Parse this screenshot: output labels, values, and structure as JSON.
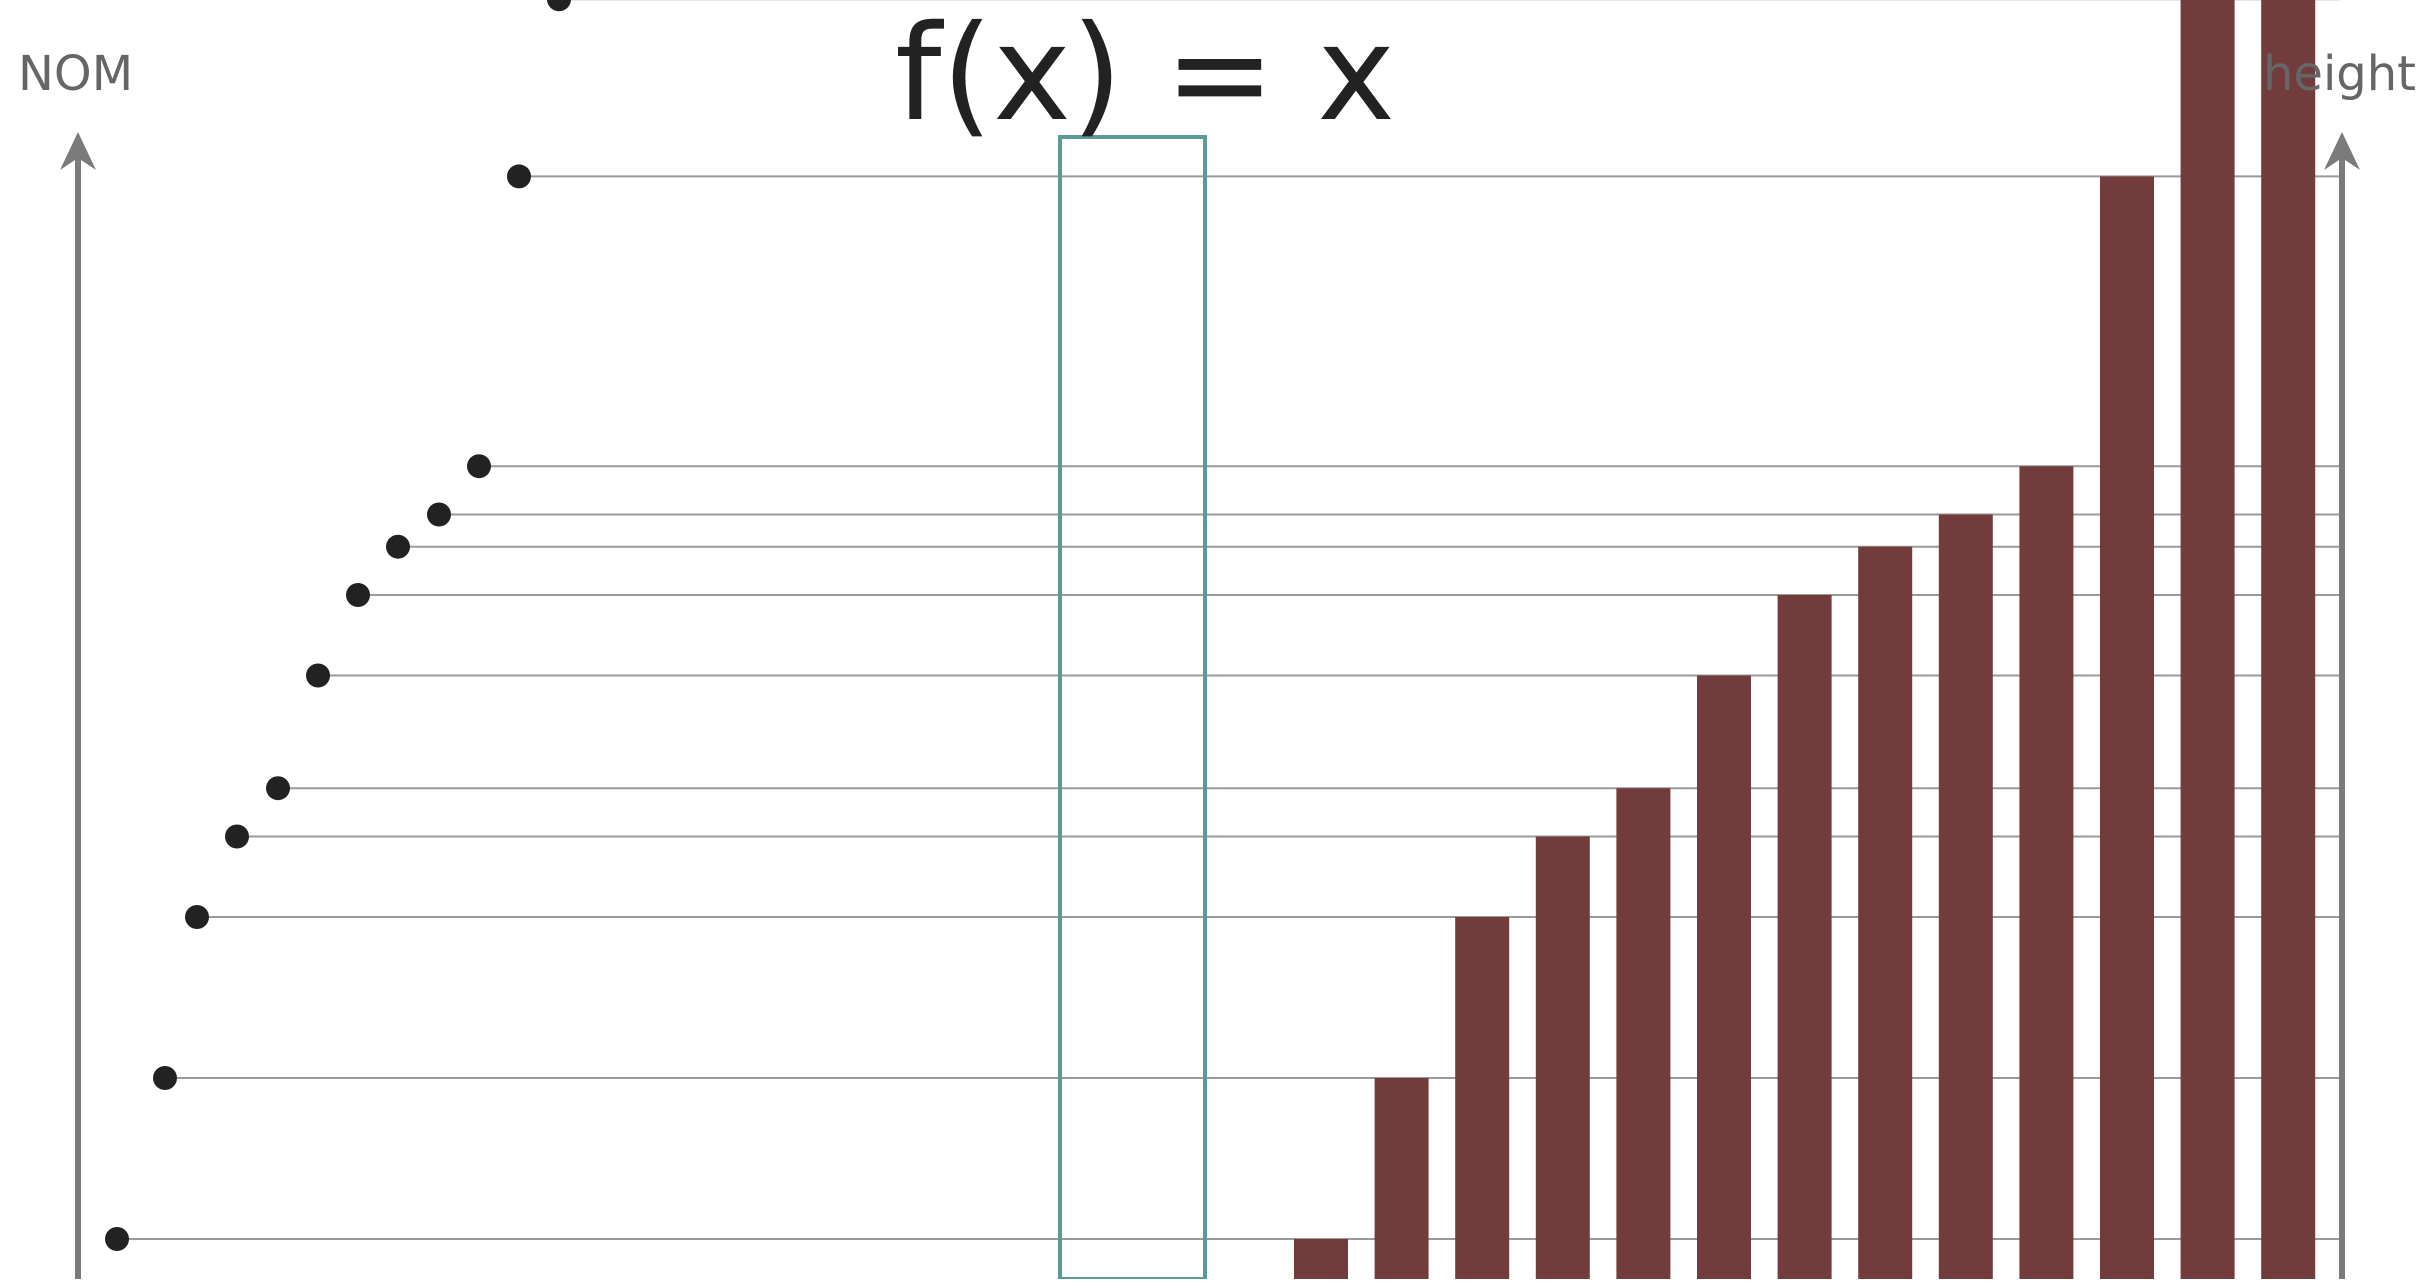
{
  "title": "f(x) = x",
  "left_axis_label": "NOM",
  "right_axis_label": "height",
  "colors": {
    "axis": "#7a7a7a",
    "guide_line": "#9a9a9a",
    "dot": "#222222",
    "bar": "#733c3c",
    "box": "#5a9a9a",
    "text": "#222222"
  },
  "chart_data": {
    "type": "bar",
    "points": [
      {
        "x": 1,
        "y": 1
      },
      {
        "x": 2,
        "y": 2
      },
      {
        "x": 3,
        "y": 3
      },
      {
        "x": 4,
        "y": 3.5
      },
      {
        "x": 5,
        "y": 3.8
      },
      {
        "x": 6,
        "y": 4.5
      },
      {
        "x": 7,
        "y": 5
      },
      {
        "x": 8,
        "y": 5.3
      },
      {
        "x": 9,
        "y": 5.5
      },
      {
        "x": 10,
        "y": 5.8
      },
      {
        "x": 11,
        "y": 7.6
      },
      {
        "x": 12,
        "y": 8.7
      },
      {
        "x": 13,
        "y": 12
      }
    ],
    "ylim": [
      0,
      13
    ]
  }
}
